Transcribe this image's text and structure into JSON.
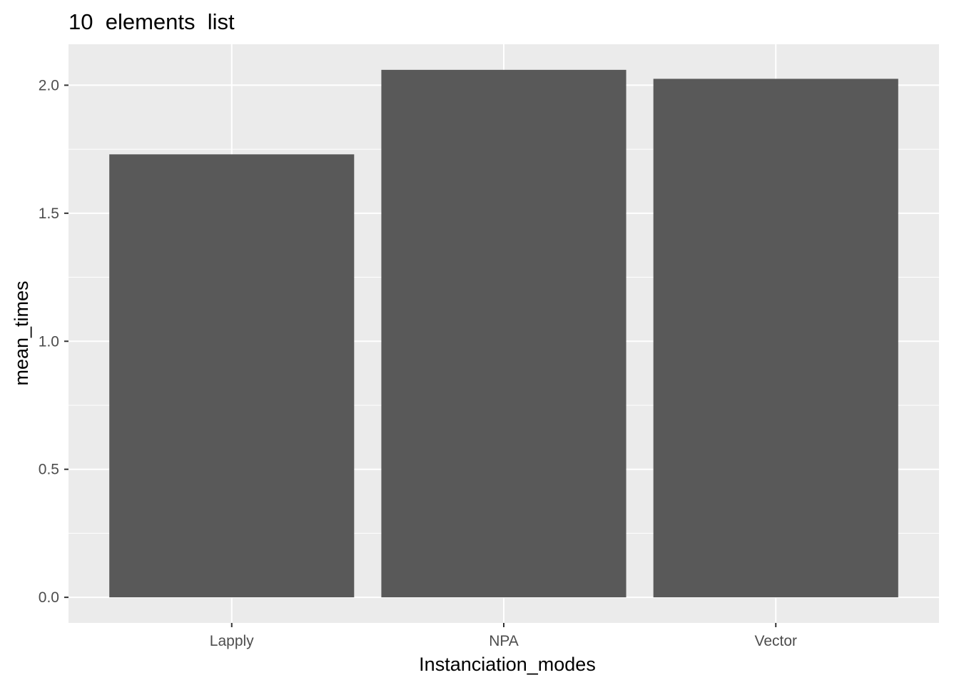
{
  "chart_data": {
    "type": "bar",
    "title": "10  elements  list",
    "xlabel": "Instanciation_modes",
    "ylabel": "mean_times",
    "categories": [
      "Lapply",
      "NPA",
      "Vector"
    ],
    "values": [
      1.73,
      2.06,
      2.025
    ],
    "ylim": [
      -0.1,
      2.16
    ],
    "yticks": [
      "0.0",
      "0.5",
      "1.0",
      "1.5",
      "2.0"
    ],
    "grid": true,
    "legend": "none",
    "colors": {
      "bar": "#595959",
      "panel_background": "#ebebeb",
      "grid_line": "#ffffff",
      "tick_text": "#4d4d4d",
      "axis_tick": "#333333"
    }
  }
}
